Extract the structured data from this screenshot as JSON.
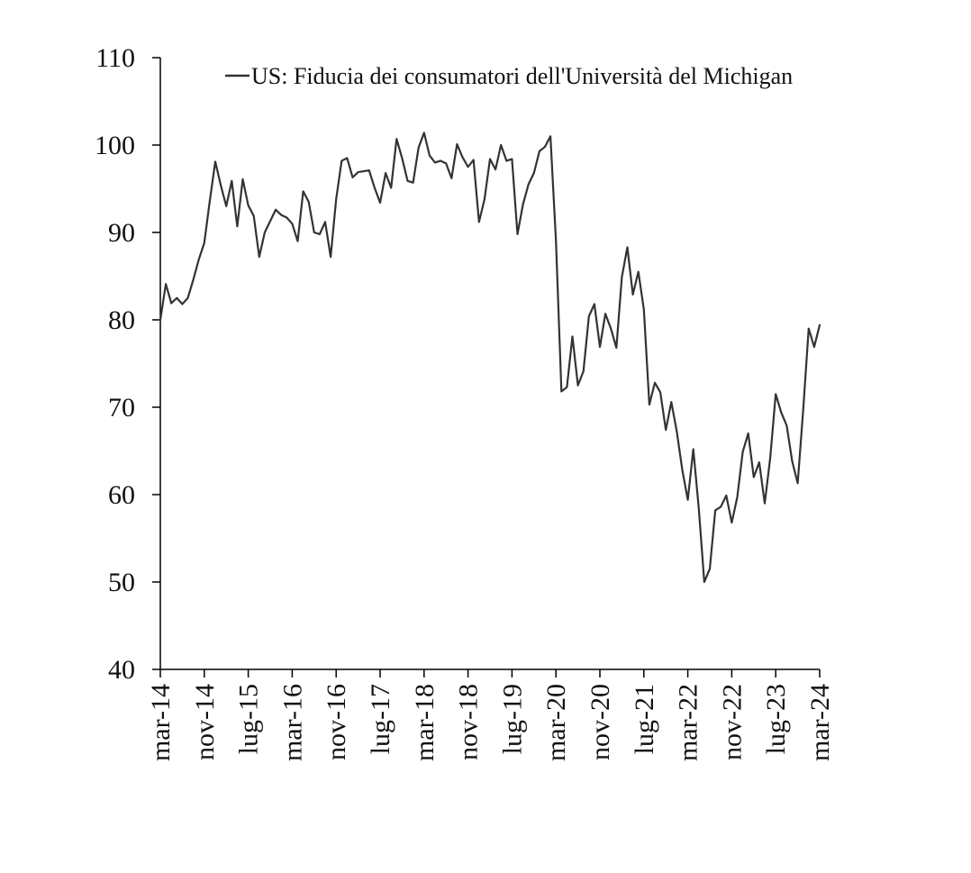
{
  "chart_data": {
    "type": "line",
    "title": "",
    "xlabel": "",
    "ylabel": "",
    "ylim": [
      40,
      110
    ],
    "y_ticks": [
      40,
      50,
      60,
      70,
      80,
      90,
      100,
      110
    ],
    "x_tick_labels": [
      "mar-14",
      "nov-14",
      "lug-15",
      "mar-16",
      "nov-16",
      "lug-17",
      "mar-18",
      "nov-18",
      "lug-19",
      "mar-20",
      "nov-20",
      "lug-21",
      "mar-22",
      "nov-22",
      "lug-23",
      "mar-24"
    ],
    "x_tick_dates": [
      "2014-03",
      "2014-11",
      "2015-07",
      "2016-03",
      "2016-11",
      "2017-07",
      "2018-03",
      "2018-11",
      "2019-07",
      "2020-03",
      "2020-11",
      "2021-07",
      "2022-03",
      "2022-11",
      "2023-07",
      "2024-03"
    ],
    "grid": false,
    "legend_position": "top",
    "line_color": "#333333",
    "series": [
      {
        "name": "US: Fiducia dei consumatori dell'Università del Michigan",
        "x": [
          "2014-03",
          "2014-04",
          "2014-05",
          "2014-06",
          "2014-07",
          "2014-08",
          "2014-09",
          "2014-10",
          "2014-11",
          "2014-12",
          "2015-01",
          "2015-02",
          "2015-03",
          "2015-04",
          "2015-05",
          "2015-06",
          "2015-07",
          "2015-08",
          "2015-09",
          "2015-10",
          "2015-11",
          "2015-12",
          "2016-01",
          "2016-02",
          "2016-03",
          "2016-04",
          "2016-05",
          "2016-06",
          "2016-07",
          "2016-08",
          "2016-09",
          "2016-10",
          "2016-11",
          "2016-12",
          "2017-01",
          "2017-02",
          "2017-03",
          "2017-04",
          "2017-05",
          "2017-06",
          "2017-07",
          "2017-08",
          "2017-09",
          "2017-10",
          "2017-11",
          "2017-12",
          "2018-01",
          "2018-02",
          "2018-03",
          "2018-04",
          "2018-05",
          "2018-06",
          "2018-07",
          "2018-08",
          "2018-09",
          "2018-10",
          "2018-11",
          "2018-12",
          "2019-01",
          "2019-02",
          "2019-03",
          "2019-04",
          "2019-05",
          "2019-06",
          "2019-07",
          "2019-08",
          "2019-09",
          "2019-10",
          "2019-11",
          "2019-12",
          "2020-01",
          "2020-02",
          "2020-03",
          "2020-04",
          "2020-05",
          "2020-06",
          "2020-07",
          "2020-08",
          "2020-09",
          "2020-10",
          "2020-11",
          "2020-12",
          "2021-01",
          "2021-02",
          "2021-03",
          "2021-04",
          "2021-05",
          "2021-06",
          "2021-07",
          "2021-08",
          "2021-09",
          "2021-10",
          "2021-11",
          "2021-12",
          "2022-01",
          "2022-02",
          "2022-03",
          "2022-04",
          "2022-05",
          "2022-06",
          "2022-07",
          "2022-08",
          "2022-09",
          "2022-10",
          "2022-11",
          "2022-12",
          "2023-01",
          "2023-02",
          "2023-03",
          "2023-04",
          "2023-05",
          "2023-06",
          "2023-07",
          "2023-08",
          "2023-09",
          "2023-10",
          "2023-11",
          "2023-12",
          "2024-01",
          "2024-02",
          "2024-03"
        ],
        "values": [
          80.0,
          84.1,
          81.9,
          82.5,
          81.8,
          82.5,
          84.6,
          86.9,
          88.8,
          93.6,
          98.1,
          95.4,
          93.0,
          95.9,
          90.7,
          96.1,
          93.1,
          91.9,
          87.2,
          90.0,
          91.3,
          92.6,
          92.0,
          91.7,
          91.0,
          89.0,
          94.7,
          93.5,
          90.0,
          89.8,
          91.2,
          87.2,
          93.8,
          98.2,
          98.5,
          96.3,
          96.9,
          97.0,
          97.1,
          95.1,
          93.4,
          96.8,
          95.1,
          100.7,
          98.5,
          95.9,
          95.7,
          99.7,
          101.4,
          98.8,
          98.0,
          98.2,
          97.9,
          96.2,
          100.1,
          98.6,
          97.5,
          98.3,
          91.2,
          93.8,
          98.4,
          97.2,
          100.0,
          98.2,
          98.4,
          89.8,
          93.2,
          95.5,
          96.8,
          99.3,
          99.8,
          101.0,
          89.1,
          71.8,
          72.3,
          78.1,
          72.5,
          74.1,
          80.4,
          81.8,
          76.9,
          80.7,
          79.0,
          76.8,
          84.9,
          88.3,
          82.9,
          85.5,
          81.2,
          70.3,
          72.8,
          71.7,
          67.4,
          70.6,
          67.2,
          62.8,
          59.4,
          65.2,
          58.4,
          50.0,
          51.5,
          58.2,
          58.6,
          59.9,
          56.8,
          59.7,
          64.9,
          67.0,
          62.0,
          63.7,
          59.0,
          64.2,
          71.5,
          69.4,
          67.9,
          63.8,
          61.3,
          69.7,
          79.0,
          76.9,
          79.4
        ]
      }
    ]
  }
}
